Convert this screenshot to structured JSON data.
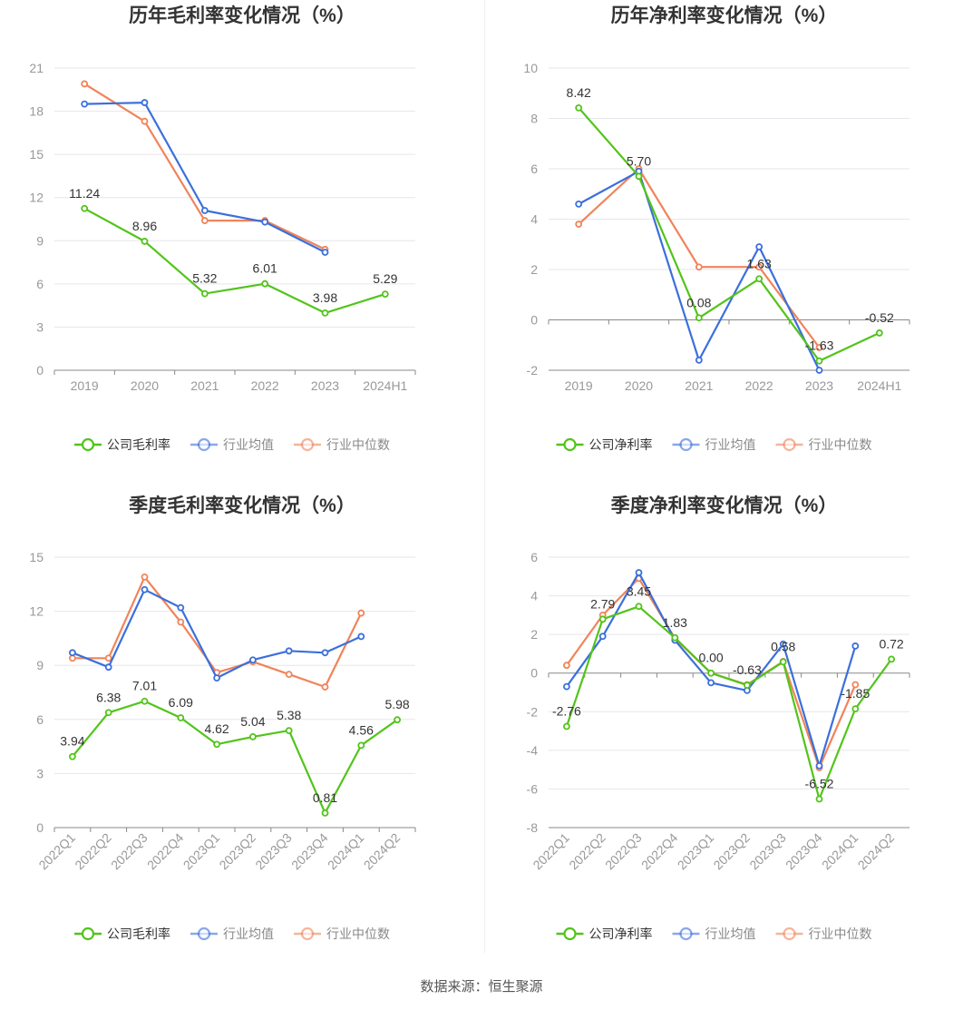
{
  "colors": {
    "company": "#52c41a",
    "industry_avg": "#3b6fdc",
    "industry_median": "#f0845a"
  },
  "footer": "数据来源：恒生聚源",
  "chart_data": [
    {
      "type": "line",
      "title": "历年毛利率变化情况（%）",
      "categories": [
        "2019",
        "2020",
        "2021",
        "2022",
        "2023",
        "2024H1"
      ],
      "ylim": [
        0,
        21
      ],
      "yticks": [
        0,
        3,
        6,
        9,
        12,
        15,
        18,
        21
      ],
      "grid": true,
      "legend_position": "bottom",
      "series": [
        {
          "name": "公司毛利率",
          "color": "#52c41a",
          "labeled": true,
          "values": [
            11.24,
            8.96,
            5.32,
            6.01,
            3.98,
            5.29
          ],
          "labels": [
            "11.24",
            "8.96",
            "5.32",
            "6.01",
            "3.98",
            "5.29"
          ]
        },
        {
          "name": "行业均值",
          "color": "#3b6fdc",
          "labeled": false,
          "values": [
            18.5,
            18.6,
            11.1,
            10.3,
            8.2,
            null
          ]
        },
        {
          "name": "行业中位数",
          "color": "#f0845a",
          "labeled": false,
          "values": [
            19.9,
            17.3,
            10.4,
            10.4,
            8.4,
            null
          ]
        }
      ]
    },
    {
      "type": "line",
      "title": "历年净利率变化情况（%）",
      "categories": [
        "2019",
        "2020",
        "2021",
        "2022",
        "2023",
        "2024H1"
      ],
      "ylim": [
        -2,
        10
      ],
      "yticks": [
        -2,
        0,
        2,
        4,
        6,
        8,
        10
      ],
      "grid": true,
      "legend_position": "bottom",
      "series": [
        {
          "name": "公司净利率",
          "color": "#52c41a",
          "labeled": true,
          "values": [
            8.42,
            5.7,
            0.08,
            1.63,
            -1.63,
            -0.52
          ],
          "labels": [
            "8.42",
            "5.70",
            "0.08",
            "1.63",
            "-1.63",
            "-0.52"
          ]
        },
        {
          "name": "行业均值",
          "color": "#3b6fdc",
          "labeled": false,
          "values": [
            4.6,
            5.9,
            -1.6,
            2.9,
            -2.0,
            null
          ]
        },
        {
          "name": "行业中位数",
          "color": "#f0845a",
          "labeled": false,
          "values": [
            3.8,
            6.0,
            2.1,
            2.1,
            -1.1,
            null
          ]
        }
      ]
    },
    {
      "type": "line",
      "title": "季度毛利率变化情况（%）",
      "categories": [
        "2022Q1",
        "2022Q2",
        "2022Q3",
        "2022Q4",
        "2023Q1",
        "2023Q2",
        "2023Q3",
        "2023Q4",
        "2024Q1",
        "2024Q2"
      ],
      "ylim": [
        0,
        15
      ],
      "yticks": [
        0,
        3,
        6,
        9,
        12,
        15
      ],
      "grid": true,
      "legend_position": "bottom",
      "series": [
        {
          "name": "公司毛利率",
          "color": "#52c41a",
          "labeled": true,
          "values": [
            3.94,
            6.38,
            7.01,
            6.09,
            4.62,
            5.04,
            5.38,
            0.81,
            4.56,
            5.98
          ],
          "labels": [
            "3.94",
            "6.38",
            "7.01",
            "6.09",
            "4.62",
            "5.04",
            "5.38",
            "0.81",
            "4.56",
            "5.98"
          ]
        },
        {
          "name": "行业均值",
          "color": "#3b6fdc",
          "labeled": false,
          "values": [
            9.7,
            8.9,
            13.2,
            12.2,
            8.3,
            9.3,
            9.8,
            9.7,
            10.6,
            null
          ]
        },
        {
          "name": "行业中位数",
          "color": "#f0845a",
          "labeled": false,
          "values": [
            9.4,
            9.4,
            13.9,
            11.4,
            8.6,
            9.2,
            8.5,
            7.8,
            11.9,
            null
          ]
        }
      ]
    },
    {
      "type": "line",
      "title": "季度净利率变化情况（%）",
      "categories": [
        "2022Q1",
        "2022Q2",
        "2022Q3",
        "2022Q4",
        "2023Q1",
        "2023Q2",
        "2023Q3",
        "2023Q4",
        "2024Q1",
        "2024Q2"
      ],
      "ylim": [
        -8,
        6
      ],
      "yticks": [
        -8,
        -6,
        -4,
        -2,
        0,
        2,
        4,
        6
      ],
      "grid": true,
      "legend_position": "bottom",
      "series": [
        {
          "name": "公司净利率",
          "color": "#52c41a",
          "labeled": true,
          "values": [
            -2.76,
            2.79,
            3.45,
            1.83,
            0.0,
            -0.63,
            0.58,
            -6.52,
            -1.85,
            0.72
          ],
          "labels": [
            "-2.76",
            "2.79",
            "3.45",
            "1.83",
            "0.00",
            "-0.63",
            "0.58",
            "-6.52",
            "-1.85",
            "0.72"
          ]
        },
        {
          "name": "行业均值",
          "color": "#3b6fdc",
          "labeled": false,
          "values": [
            -0.7,
            1.9,
            5.2,
            1.7,
            -0.5,
            -0.9,
            1.5,
            -4.8,
            1.4,
            null
          ]
        },
        {
          "name": "行业中位数",
          "color": "#f0845a",
          "labeled": false,
          "values": [
            0.4,
            3.0,
            4.9,
            1.8,
            0.0,
            -0.6,
            0.6,
            -4.9,
            -0.6,
            null
          ]
        }
      ]
    }
  ]
}
